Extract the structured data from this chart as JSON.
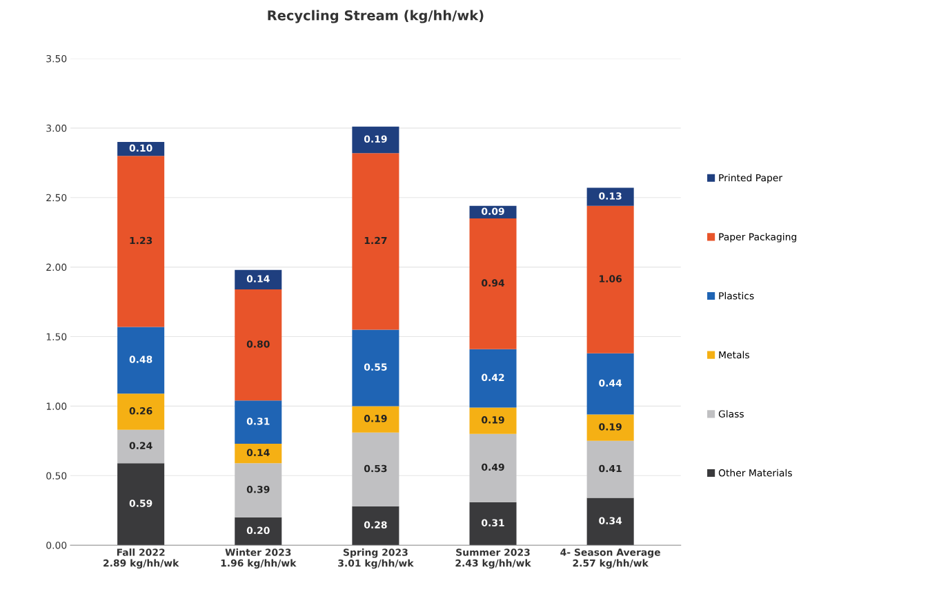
{
  "chart_data": {
    "type": "bar",
    "stacked": true,
    "title": "Recycling Stream (kg/hh/wk)",
    "categories": [
      "Fall 2022\n2.89 kg/hh/wk",
      "Winter 2023\n1.96 kg/hh/wk",
      "Spring 2023\n3.01 kg/hh/wk",
      "Summer 2023\n2.43 kg/hh/wk",
      "4- Season Average\n2.57 kg/hh/wk"
    ],
    "series": [
      {
        "name": "Other Materials",
        "color": "#3a3a3c",
        "values": [
          0.59,
          0.2,
          0.28,
          0.31,
          0.34
        ],
        "value_labels": [
          "0.59",
          "0.20",
          "0.28",
          "0.31",
          "0.34"
        ]
      },
      {
        "name": "Glass",
        "color": "#c0c0c2",
        "values": [
          0.24,
          0.39,
          0.53,
          0.49,
          0.41
        ],
        "value_labels": [
          "0.24",
          "0.39",
          "0.53",
          "0.49",
          "0.41"
        ]
      },
      {
        "name": "Metals",
        "color": "#f5b014",
        "values": [
          0.26,
          0.14,
          0.19,
          0.19,
          0.19
        ],
        "value_labels": [
          "0.26",
          "0.14",
          "0.19",
          "0.19",
          "0.19"
        ]
      },
      {
        "name": "Plastics",
        "color": "#1f64b4",
        "values": [
          0.48,
          0.31,
          0.55,
          0.42,
          0.44
        ],
        "value_labels": [
          "0.48",
          "0.31",
          "0.55",
          "0.42",
          "0.44"
        ]
      },
      {
        "name": "Paper Packaging",
        "color": "#e8542a",
        "values": [
          1.23,
          0.8,
          1.27,
          0.94,
          1.06
        ],
        "value_labels": [
          "1.23",
          "0.80",
          "1.27",
          "0.94",
          "1.06"
        ]
      },
      {
        "name": "Printed Paper",
        "color": "#1f3f7f",
        "values": [
          0.1,
          0.14,
          0.19,
          0.09,
          0.13
        ],
        "value_labels": [
          "0.10",
          "0.14",
          "0.19",
          "0.09",
          "0.13"
        ]
      }
    ],
    "ylim": [
      0,
      3.5
    ],
    "yticks": [
      {
        "value": 0,
        "label": "0.00"
      },
      {
        "value": 0.5,
        "label": "0.50"
      },
      {
        "value": 1,
        "label": "1.00"
      },
      {
        "value": 1.5,
        "label": "1.50"
      },
      {
        "value": 2,
        "label": "2.00"
      },
      {
        "value": 2.5,
        "label": "2.50"
      },
      {
        "value": 3,
        "label": "3.00"
      },
      {
        "value": 3.5,
        "label": "3.50"
      }
    ],
    "grid": "y",
    "legend": "right"
  }
}
